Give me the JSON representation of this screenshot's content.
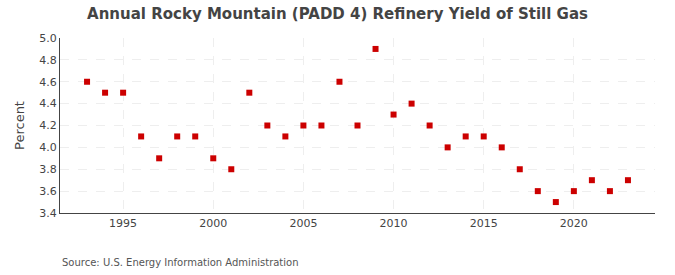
{
  "chart_data": {
    "type": "scatter",
    "title": "Annual Rocky Mountain (PADD 4) Refinery Yield of Still Gas",
    "ylabel": "Percent",
    "annotations": [
      "Source: U.S. Energy Information Administration"
    ],
    "x": [
      1993,
      1994,
      1995,
      1996,
      1997,
      1998,
      1999,
      2000,
      2001,
      2002,
      2003,
      2004,
      2005,
      2006,
      2007,
      2008,
      2009,
      2010,
      2011,
      2012,
      2013,
      2014,
      2015,
      2016,
      2017,
      2018,
      2019,
      2020,
      2021,
      2022,
      2023
    ],
    "values": [
      4.6,
      4.5,
      4.5,
      4.1,
      3.9,
      4.1,
      4.1,
      3.9,
      3.8,
      4.5,
      4.2,
      4.1,
      4.2,
      4.2,
      4.6,
      4.2,
      4.9,
      4.3,
      4.4,
      4.2,
      4.0,
      4.1,
      4.1,
      4.0,
      3.8,
      3.6,
      3.5,
      3.6,
      3.7,
      3.6,
      3.7
    ],
    "color": "#cc0000",
    "marker": "square",
    "xlim": [
      1991.5,
      2024.5
    ],
    "xticks": [
      1995,
      2000,
      2005,
      2010,
      2015,
      2020
    ],
    "ylim": [
      3.4,
      5.0
    ],
    "yticks": [
      3.4,
      3.6,
      3.8,
      {
        "value": 4.0,
        "label": "4.0"
      },
      4.2,
      4.4,
      4.6,
      4.8,
      {
        "value": 5.0,
        "label": "5.0"
      }
    ],
    "grid": true
  }
}
